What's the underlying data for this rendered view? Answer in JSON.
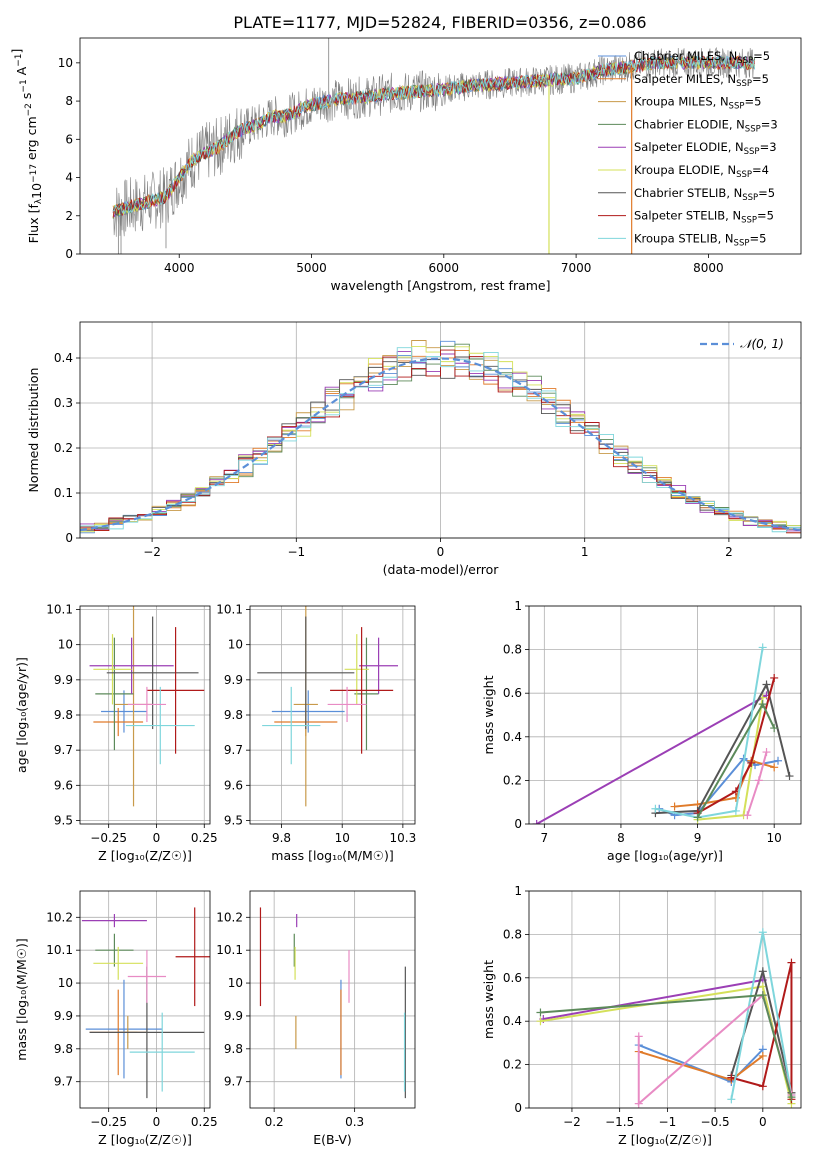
{
  "title": "PLATE=1177, MJD=52824, FIBERID=0356, z=0.086",
  "models": [
    {
      "name": "Chabrier MILES, N$_{SSP}$=5",
      "label_main": "Chabrier MILES, N",
      "label_sub": "SSP",
      "label_end": "=5",
      "color": "#5b8fd8"
    },
    {
      "name": "Salpeter MILES, N$_{SSP}$=5",
      "label_main": "Salpeter MILES, N",
      "label_sub": "SSP",
      "label_end": "=5",
      "color": "#e07b2a"
    },
    {
      "name": "Kroupa MILES, N$_{SSP}$=5",
      "label_main": "Kroupa MILES, N",
      "label_sub": "SSP",
      "label_end": "=5",
      "color": "#c89a4a"
    },
    {
      "name": "Chabrier ELODIE, N$_{SSP}$=3",
      "label_main": "Chabrier ELODIE, N",
      "label_sub": "SSP",
      "label_end": "=3",
      "color": "#5c8a5a"
    },
    {
      "name": "Salpeter ELODIE, N$_{SSP}$=3",
      "label_main": "Salpeter ELODIE, N",
      "label_sub": "SSP",
      "label_end": "=3",
      "color": "#9b3fb5"
    },
    {
      "name": "Kroupa ELODIE, N$_{SSP}$=4",
      "label_main": "Kroupa ELODIE, N",
      "label_sub": "SSP",
      "label_end": "=4",
      "color": "#d4e05a"
    },
    {
      "name": "Chabrier STELIB, N$_{SSP}$=5",
      "label_main": "Chabrier STELIB, N",
      "label_sub": "SSP",
      "label_end": "=5",
      "color": "#555555"
    },
    {
      "name": "Salpeter STELIB, N$_{SSP}$=5",
      "label_main": "Salpeter STELIB, N",
      "label_sub": "SSP",
      "label_end": "=5",
      "color": "#b01a1a"
    },
    {
      "name": "Kroupa STELIB, N$_{SSP}$=5",
      "label_main": "Kroupa STELIB, N",
      "label_sub": "SSP",
      "label_end": "=5",
      "color": "#7fd6dc"
    }
  ],
  "chart_data": [
    {
      "id": "spectrum",
      "type": "line",
      "title": "PLATE=1177, MJD=52824, FIBERID=0356, z=0.086",
      "xlabel": "wavelength [Angstrom, rest frame]",
      "ylabel_main": "Flux [f",
      "ylabel_lambda": "λ",
      "ylabel_rest": "10",
      "ylabel_exp": "−17",
      "ylabel_units": " erg cm",
      "ylabel_units_exp1": "−2",
      "ylabel_units_mid": " s",
      "ylabel_units_exp2": "−1",
      "ylabel_units_end": " A",
      "ylabel_units_exp3": "−1",
      "ylabel_close": "]",
      "xlim": [
        3250,
        8700
      ],
      "ylim": [
        0,
        11.3
      ],
      "xticks": [
        4000,
        5000,
        6000,
        7000,
        8000
      ],
      "yticks": [
        0,
        2,
        4,
        6,
        8,
        10
      ],
      "data_color": "#808080",
      "continuum": {
        "wavelength": [
          3500,
          3700,
          3900,
          4000,
          4100,
          4200,
          4300,
          4400,
          4500,
          4600,
          4700,
          4800,
          4900,
          5000,
          5200,
          5400,
          5600,
          5800,
          6000,
          6200,
          6400,
          6600,
          6800,
          7000,
          7200,
          7400,
          7600,
          7800,
          8000,
          8200,
          8350
        ],
        "flux": [
          2.2,
          2.6,
          3.0,
          4.0,
          4.9,
          5.3,
          5.6,
          6.2,
          6.6,
          6.8,
          7.2,
          7.2,
          7.5,
          7.8,
          8.1,
          8.2,
          8.4,
          8.5,
          8.6,
          8.8,
          8.9,
          9.0,
          9.1,
          9.2,
          9.6,
          9.8,
          10.0,
          10.0,
          10.0,
          10.0,
          10.0
        ]
      },
      "legend": "top-right"
    },
    {
      "id": "residual-histogram",
      "type": "bar",
      "xlabel": "(data-model)/error",
      "ylabel": "Normed distribution",
      "xlim": [
        -2.5,
        2.5
      ],
      "ylim": [
        0,
        0.48
      ],
      "xticks": [
        -2,
        -1,
        0,
        1,
        2
      ],
      "yticks": [
        0.0,
        0.1,
        0.2,
        0.3,
        0.4
      ],
      "grid": true,
      "gaussian_label": "𝒩(0, 1)",
      "gaussian_color": "#5b8fd8",
      "legend": "top-right"
    },
    {
      "id": "age-vs-Z",
      "type": "scatter",
      "xlabel": "Z [log₁₀(Z/Z☉)]",
      "ylabel": "age  [log₁₀(age/yr)]",
      "xlim": [
        -0.4,
        0.28
      ],
      "ylim": [
        9.49,
        10.11
      ],
      "xticks": [
        -0.25,
        0.0,
        0.25
      ],
      "yticks": [
        9.5,
        9.6,
        9.7,
        9.8,
        9.9,
        10.0,
        10.1
      ],
      "grid": true,
      "points": [
        {
          "x": -0.17,
          "xerr": 0.12,
          "y": 9.81,
          "yerr": 0.06,
          "color": "#5b8fd8"
        },
        {
          "x": -0.2,
          "xerr": 0.13,
          "y": 9.78,
          "yerr": 0.04,
          "color": "#e07b2a"
        },
        {
          "x": -0.12,
          "xerr": 0.1,
          "y": 9.83,
          "yerr": 0.29,
          "color": "#c89a4a"
        },
        {
          "x": -0.22,
          "xerr": 0.1,
          "y": 9.86,
          "yerr": 0.16,
          "color": "#5c8a5a"
        },
        {
          "x": -0.13,
          "xerr": 0.22,
          "y": 9.94,
          "yerr": 0.08,
          "color": "#9b3fb5"
        },
        {
          "x": -0.23,
          "xerr": 0.1,
          "y": 9.93,
          "yerr": 0.1,
          "color": "#d4e05a"
        },
        {
          "x": -0.02,
          "xerr": 0.24,
          "y": 9.92,
          "yerr": 0.16,
          "color": "#555555"
        },
        {
          "x": 0.1,
          "xerr": 0.15,
          "y": 9.87,
          "yerr": 0.18,
          "color": "#b01a1a"
        },
        {
          "x": 0.02,
          "xerr": 0.18,
          "y": 9.77,
          "yerr": 0.11,
          "color": "#7fd6dc"
        },
        {
          "x": -0.05,
          "xerr": 0.1,
          "y": 9.83,
          "yerr": 0.05,
          "color": "#e88bc4"
        }
      ]
    },
    {
      "id": "age-vs-mass",
      "type": "scatter",
      "xlabel": "mass [log₁₀(M/M☉)]",
      "ylabel": "",
      "xlim": [
        9.62,
        10.3
      ],
      "ylim": [
        9.49,
        10.11
      ],
      "xticks": [
        9.75,
        10.0,
        10.25
      ],
      "yticks": [
        9.5,
        9.6,
        9.7,
        9.8,
        9.9,
        10.0,
        10.1
      ],
      "grid": true,
      "points": [
        {
          "x": 9.86,
          "xerr": 0.15,
          "y": 9.81,
          "yerr": 0.06,
          "color": "#5b8fd8"
        },
        {
          "x": 9.85,
          "xerr": 0.13,
          "y": 9.78,
          "yerr": 0.04,
          "color": "#e07b2a"
        },
        {
          "x": 9.85,
          "xerr": 0.05,
          "y": 9.83,
          "yerr": 0.29,
          "color": "#c89a4a"
        },
        {
          "x": 10.1,
          "xerr": 0.05,
          "y": 9.86,
          "yerr": 0.16,
          "color": "#5c8a5a"
        },
        {
          "x": 10.15,
          "xerr": 0.08,
          "y": 9.94,
          "yerr": 0.08,
          "color": "#9b3fb5"
        },
        {
          "x": 10.06,
          "xerr": 0.05,
          "y": 9.93,
          "yerr": 0.1,
          "color": "#d4e05a"
        },
        {
          "x": 9.85,
          "xerr": 0.2,
          "y": 9.92,
          "yerr": 0.16,
          "color": "#555555"
        },
        {
          "x": 10.08,
          "xerr": 0.13,
          "y": 9.87,
          "yerr": 0.18,
          "color": "#b01a1a"
        },
        {
          "x": 9.79,
          "xerr": 0.12,
          "y": 9.77,
          "yerr": 0.11,
          "color": "#7fd6dc"
        },
        {
          "x": 10.02,
          "xerr": 0.08,
          "y": 9.83,
          "yerr": 0.05,
          "color": "#e88bc4"
        }
      ]
    },
    {
      "id": "massweight-vs-age",
      "type": "line",
      "xlabel": "age  [log₁₀(age/yr)]",
      "ylabel": "mass weight",
      "xlim": [
        6.8,
        10.35
      ],
      "ylim": [
        0,
        1.0
      ],
      "xticks": [
        7,
        8,
        9,
        10
      ],
      "yticks": [
        0.0,
        0.2,
        0.4,
        0.6,
        0.8,
        1.0
      ],
      "grid": true,
      "series": [
        {
          "color": "#5b8fd8",
          "x": [
            8.5,
            8.7,
            9.0,
            9.6,
            9.75,
            10.05
          ],
          "y": [
            0.07,
            0.04,
            0.05,
            0.3,
            0.27,
            0.29
          ]
        },
        {
          "color": "#e07b2a",
          "x": [
            8.7,
            9.0,
            9.5,
            9.7,
            10.0
          ],
          "y": [
            0.08,
            0.09,
            0.12,
            0.29,
            0.26
          ]
        },
        {
          "color": "#9b3fb5",
          "x": [
            6.9,
            9.9
          ],
          "y": [
            0.0,
            0.59
          ]
        },
        {
          "color": "#d4e05a",
          "x": [
            9.0,
            9.6,
            9.85
          ],
          "y": [
            0.02,
            0.04,
            0.58
          ]
        },
        {
          "color": "#555555",
          "x": [
            8.45,
            9.0,
            9.9,
            10.2
          ],
          "y": [
            0.05,
            0.06,
            0.64,
            0.22
          ]
        },
        {
          "color": "#b01a1a",
          "x": [
            9.0,
            9.5,
            9.7,
            10.0
          ],
          "y": [
            0.05,
            0.15,
            0.28,
            0.67
          ]
        },
        {
          "color": "#7fd6dc",
          "x": [
            8.45,
            9.0,
            9.5,
            9.85
          ],
          "y": [
            0.07,
            0.03,
            0.06,
            0.81
          ]
        },
        {
          "color": "#e88bc4",
          "x": [
            9.65,
            9.8,
            9.9
          ],
          "y": [
            0.04,
            0.2,
            0.33
          ]
        },
        {
          "color": "#5c8a5a",
          "x": [
            9.0,
            9.85,
            10.0
          ],
          "y": [
            0.03,
            0.55,
            0.44
          ]
        }
      ]
    },
    {
      "id": "mass-vs-Z",
      "type": "scatter",
      "xlabel": "Z [log₁₀(Z/Z☉)]",
      "ylabel": "mass [log₁₀(M/M☉)]",
      "xlim": [
        -0.4,
        0.28
      ],
      "ylim": [
        9.62,
        10.28
      ],
      "xticks": [
        -0.25,
        0.0,
        0.25
      ],
      "yticks": [
        9.7,
        9.8,
        9.9,
        10.0,
        10.1,
        10.2
      ],
      "grid": true,
      "points": [
        {
          "x": -0.17,
          "xerr": 0.2,
          "y": 9.86,
          "yerr": 0.15,
          "color": "#5b8fd8"
        },
        {
          "x": -0.2,
          "xerr": 0.15,
          "y": 9.85,
          "yerr": 0.13,
          "color": "#e07b2a"
        },
        {
          "x": -0.15,
          "xerr": 0.05,
          "y": 9.85,
          "yerr": 0.05,
          "color": "#c89a4a"
        },
        {
          "x": -0.22,
          "xerr": 0.1,
          "y": 10.1,
          "yerr": 0.05,
          "color": "#5c8a5a"
        },
        {
          "x": -0.22,
          "xerr": 0.17,
          "y": 10.19,
          "yerr": 0.02,
          "color": "#9b3fb5"
        },
        {
          "x": -0.2,
          "xerr": 0.13,
          "y": 10.06,
          "yerr": 0.05,
          "color": "#d4e05a"
        },
        {
          "x": -0.05,
          "xerr": 0.3,
          "y": 9.85,
          "yerr": 0.2,
          "color": "#555555"
        },
        {
          "x": 0.2,
          "xerr": 0.1,
          "y": 10.08,
          "yerr": 0.15,
          "color": "#b01a1a"
        },
        {
          "x": 0.03,
          "xerr": 0.17,
          "y": 9.79,
          "yerr": 0.12,
          "color": "#7fd6dc"
        },
        {
          "x": -0.05,
          "xerr": 0.1,
          "y": 10.02,
          "yerr": 0.08,
          "color": "#e88bc4"
        }
      ]
    },
    {
      "id": "mass-vs-ebv",
      "type": "scatter",
      "xlabel": "E(B-V)",
      "ylabel": "",
      "xlim": [
        0.17,
        0.375
      ],
      "ylim": [
        9.62,
        10.28
      ],
      "xticks": [
        0.2,
        0.3
      ],
      "yticks": [
        9.7,
        9.8,
        9.9,
        10.0,
        10.1,
        10.2
      ],
      "grid": true,
      "points": [
        {
          "x": 0.283,
          "y": 9.86,
          "yerr": 0.15,
          "color": "#5b8fd8"
        },
        {
          "x": 0.283,
          "y": 9.85,
          "yerr": 0.13,
          "color": "#e07b2a"
        },
        {
          "x": 0.227,
          "y": 9.85,
          "yerr": 0.05,
          "color": "#c89a4a"
        },
        {
          "x": 0.225,
          "y": 10.1,
          "yerr": 0.05,
          "color": "#5c8a5a"
        },
        {
          "x": 0.228,
          "y": 10.19,
          "yerr": 0.02,
          "color": "#9b3fb5"
        },
        {
          "x": 0.226,
          "y": 10.06,
          "yerr": 0.05,
          "color": "#d4e05a"
        },
        {
          "x": 0.363,
          "y": 9.85,
          "yerr": 0.2,
          "color": "#555555"
        },
        {
          "x": 0.183,
          "y": 10.08,
          "yerr": 0.15,
          "color": "#b01a1a"
        },
        {
          "x": 0.362,
          "y": 9.79,
          "yerr": 0.12,
          "color": "#7fd6dc"
        },
        {
          "x": 0.293,
          "y": 10.02,
          "yerr": 0.08,
          "color": "#e88bc4"
        }
      ]
    },
    {
      "id": "massweight-vs-Z",
      "type": "line",
      "xlabel": "Z [log₁₀(Z/Z☉)]",
      "ylabel": "mass weight",
      "xlim": [
        -2.45,
        0.4
      ],
      "ylim": [
        0,
        1.0
      ],
      "xticks": [
        -2.0,
        -1.5,
        -1.0,
        -0.5,
        0.0
      ],
      "yticks": [
        0.0,
        0.2,
        0.4,
        0.6,
        0.8,
        1.0
      ],
      "grid": true,
      "series": [
        {
          "color": "#5b8fd8",
          "x": [
            -1.3,
            -0.33,
            0.0
          ],
          "y": [
            0.29,
            0.12,
            0.27
          ]
        },
        {
          "color": "#e07b2a",
          "x": [
            -1.3,
            -0.33,
            0.0
          ],
          "y": [
            0.26,
            0.13,
            0.24
          ]
        },
        {
          "color": "#9b3fb5",
          "x": [
            -2.3,
            0.0
          ],
          "y": [
            0.41,
            0.59
          ]
        },
        {
          "color": "#d4e05a",
          "x": [
            -2.33,
            0.0,
            0.3
          ],
          "y": [
            0.4,
            0.56,
            0.02
          ]
        },
        {
          "color": "#555555",
          "x": [
            -0.33,
            0.0,
            0.3,
            0.3
          ],
          "y": [
            0.15,
            0.63,
            0.07,
            0.07
          ]
        },
        {
          "color": "#b01a1a",
          "x": [
            -0.33,
            0.0,
            0.3,
            0.3
          ],
          "y": [
            0.14,
            0.1,
            0.67,
            0.04
          ]
        },
        {
          "color": "#7fd6dc",
          "x": [
            -0.33,
            0.0,
            0.3
          ],
          "y": [
            0.04,
            0.81,
            0.06
          ]
        },
        {
          "color": "#e88bc4",
          "x": [
            -1.3,
            -1.3,
            0.0,
            0.3
          ],
          "y": [
            0.33,
            0.02,
            0.52,
            0.06
          ]
        },
        {
          "color": "#5c8a5a",
          "x": [
            -2.33,
            0.0,
            0.3
          ],
          "y": [
            0.44,
            0.52,
            0.05
          ]
        }
      ]
    }
  ]
}
